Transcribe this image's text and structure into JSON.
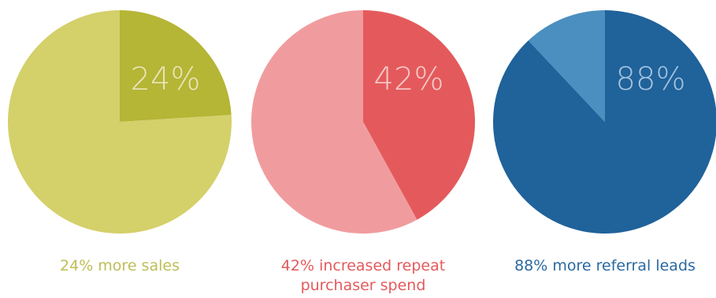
{
  "chart_data": [
    {
      "type": "pie",
      "values": [
        24,
        76
      ],
      "slice_label": "24%",
      "caption": "24% more sales",
      "colors": {
        "highlight": "#b5b536",
        "rest": "#d4d06a",
        "label": "#e8e6b8",
        "caption": "#bfbd57"
      }
    },
    {
      "type": "pie",
      "values": [
        42,
        58
      ],
      "slice_label": "42%",
      "caption": "42% increased repeat\npurchaser spend",
      "colors": {
        "highlight": "#e45a5c",
        "rest": "#f09c9e",
        "label": "#f6c9c9",
        "caption": "#e45a5c"
      }
    },
    {
      "type": "pie",
      "values": [
        88,
        12
      ],
      "slice_label": "88%",
      "caption": "88% more referral leads",
      "colors": {
        "highlight": "#20629a",
        "rest": "#4a8fc0",
        "label": "#a3c3e0",
        "caption": "#2a69a0"
      }
    }
  ]
}
